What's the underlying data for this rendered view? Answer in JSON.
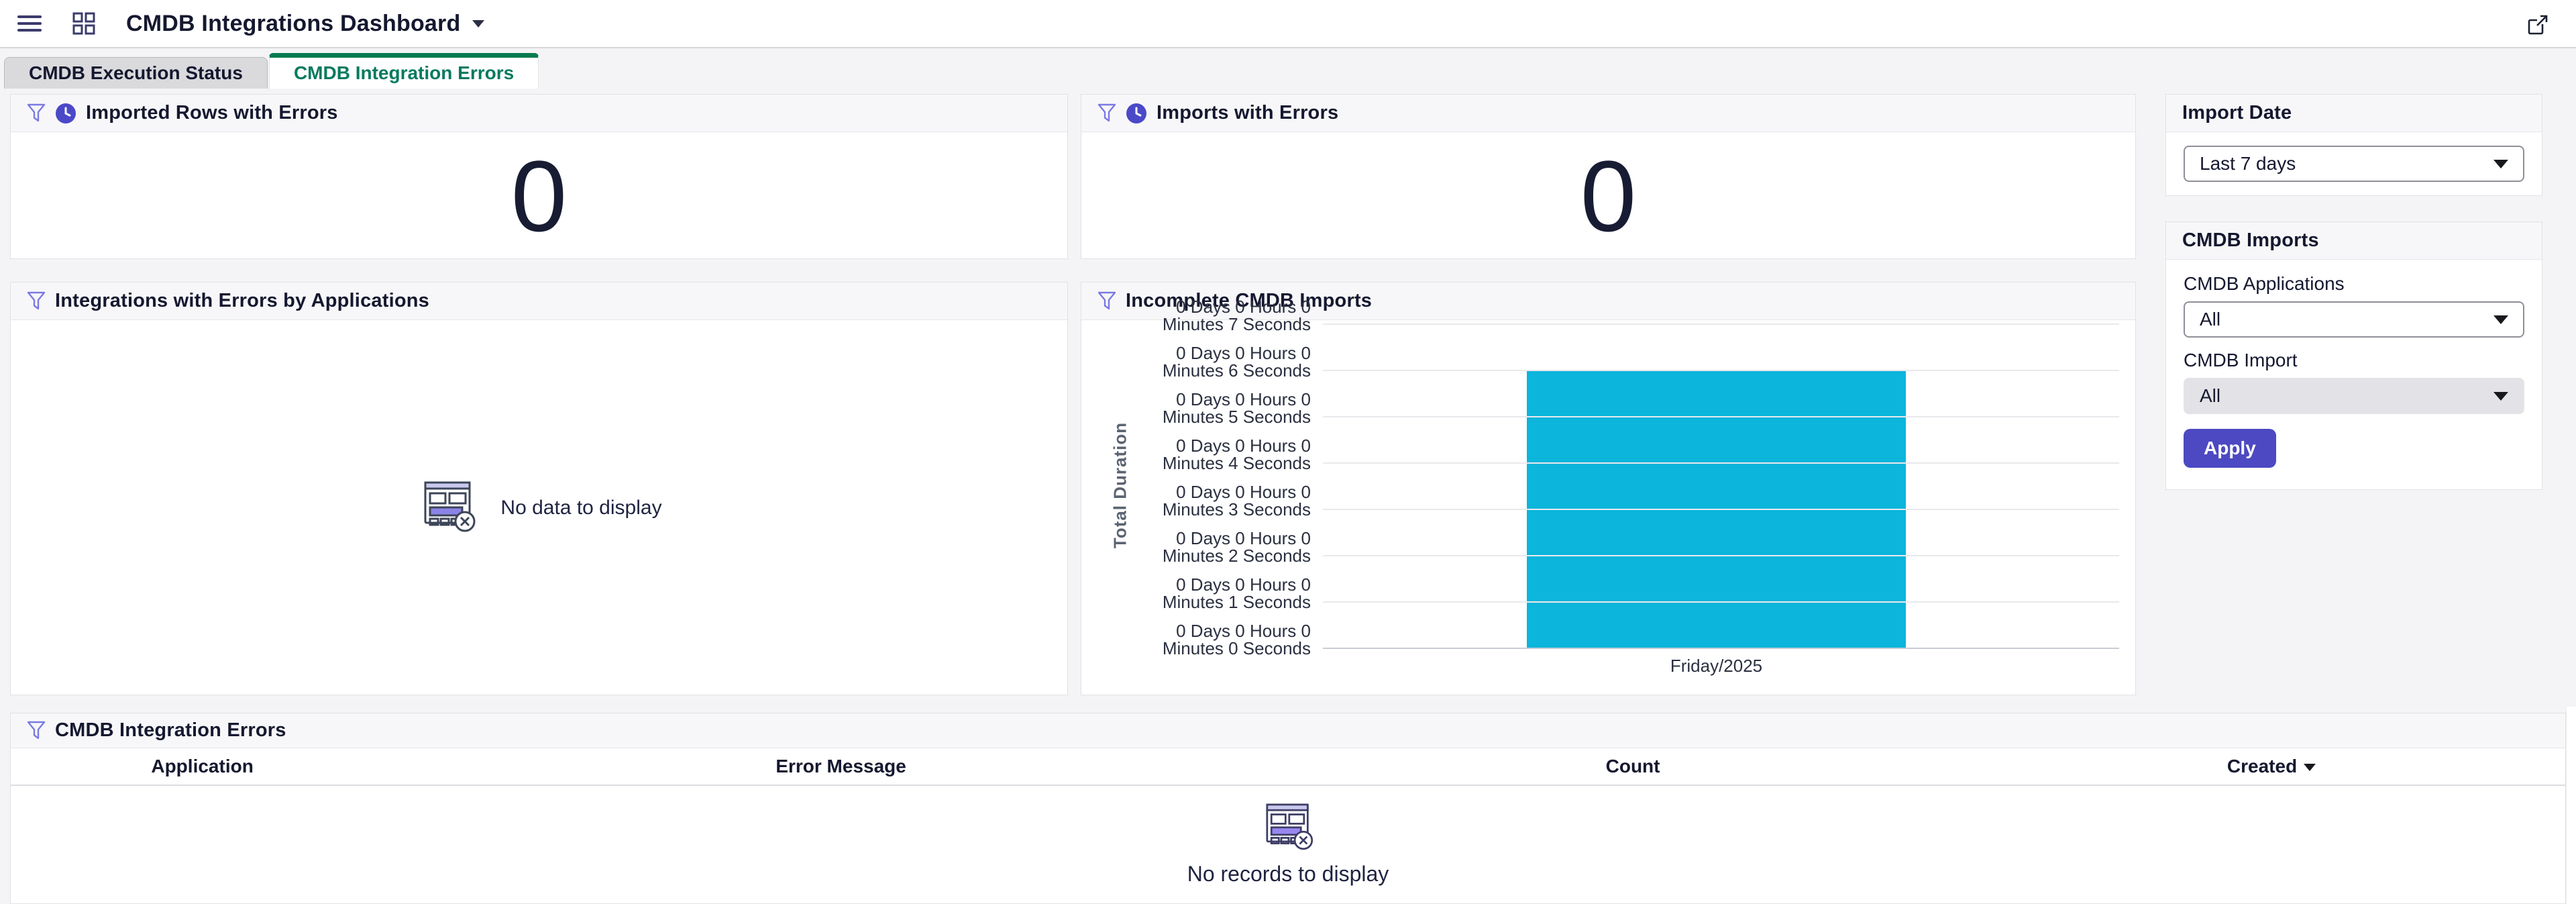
{
  "header": {
    "title": "CMDB Integrations Dashboard"
  },
  "tabs": [
    {
      "label": "CMDB Execution Status",
      "active": false
    },
    {
      "label": "CMDB Integration Errors",
      "active": true
    }
  ],
  "panels": {
    "imported_rows": {
      "title": "Imported Rows with Errors",
      "value": "0"
    },
    "imports_errors": {
      "title": "Imports with Errors",
      "value": "0"
    },
    "integrations_by_app": {
      "title": "Integrations with Errors by Applications",
      "empty_text": "No data to display"
    }
  },
  "chart_data": {
    "type": "bar",
    "title": "Incomplete CMDB Imports",
    "categories": [
      "Friday/2025"
    ],
    "series": [
      {
        "name": "Total Duration",
        "values": [
          6
        ]
      }
    ],
    "xlabel": "",
    "ylabel": "Total Duration",
    "ylim": [
      0,
      7
    ],
    "ytick_labels": [
      "0 Days 0 Hours 0 Minutes 0 Seconds",
      "0 Days 0 Hours 0 Minutes 1 Seconds",
      "0 Days 0 Hours 0 Minutes 2 Seconds",
      "0 Days 0 Hours 0 Minutes 3 Seconds",
      "0 Days 0 Hours 0 Minutes 4 Seconds",
      "0 Days 0 Hours 0 Minutes 5 Seconds",
      "0 Days 0 Hours 0 Minutes 6 Seconds",
      "0 Days 0 Hours 0 Minutes 7 Seconds"
    ],
    "grid": true,
    "legend": false,
    "bar_color": "#0bb5db"
  },
  "sidebar": {
    "import_date": {
      "title": "Import Date",
      "value": "Last 7 days"
    },
    "cmdb_imports": {
      "title": "CMDB Imports",
      "applications_label": "CMDB Applications",
      "applications_value": "All",
      "import_label": "CMDB Import",
      "import_value": "All",
      "apply_label": "Apply"
    }
  },
  "table": {
    "title": "CMDB Integration Errors",
    "columns": [
      "Application",
      "Error Message",
      "Count",
      "Created"
    ],
    "sorted_column": "Created",
    "sort_direction": "desc",
    "empty_text": "No records to display"
  },
  "colors": {
    "accent_purple": "#4c49c2",
    "icon_purple": "#7b7ae2",
    "active_tab_green": "#077a4f",
    "bar_cyan": "#0bb5db",
    "header_text": "#15182f",
    "panel_header_bg": "#f7f7f9",
    "page_bg": "#f4f4f6"
  }
}
